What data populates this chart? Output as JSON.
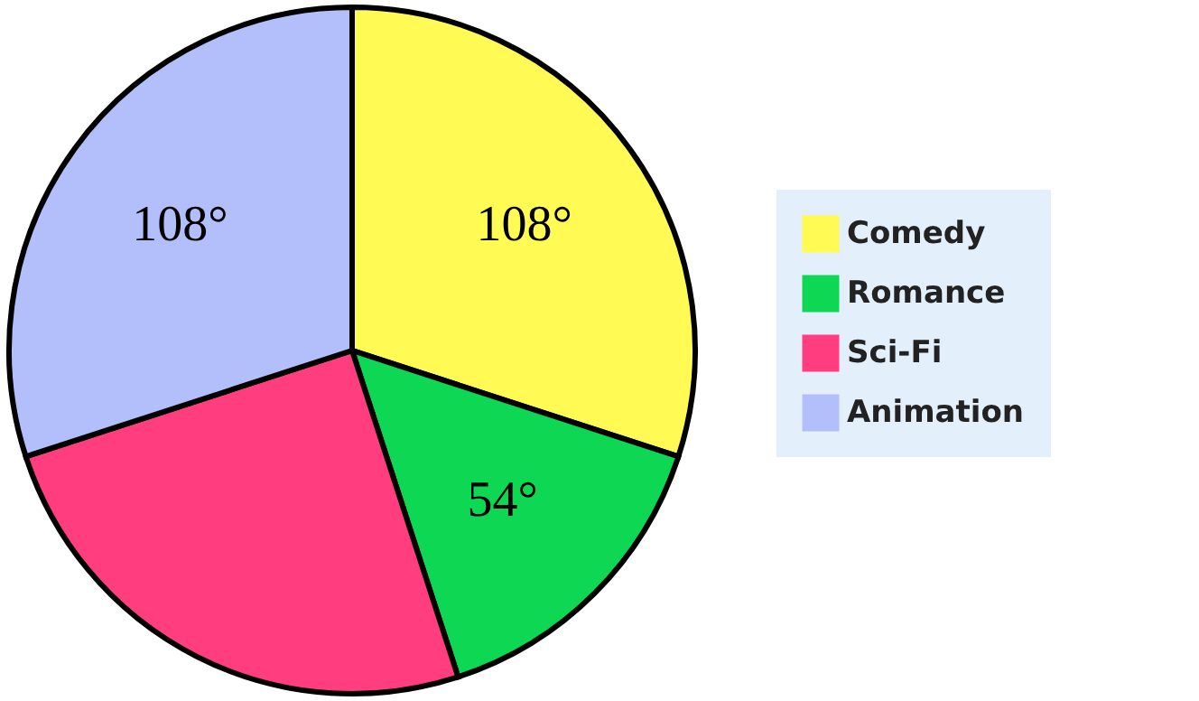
{
  "chart_data": {
    "type": "pie",
    "categories": [
      "Comedy",
      "Romance",
      "Sci-Fi",
      "Animation"
    ],
    "values": [
      108,
      54,
      90,
      108
    ],
    "colors": [
      "#fffb54",
      "#0ed853",
      "#ff3d7f",
      "#b3bffb"
    ],
    "value_labels": [
      "108°",
      "54°",
      null,
      "108°"
    ],
    "legend": "right"
  }
}
